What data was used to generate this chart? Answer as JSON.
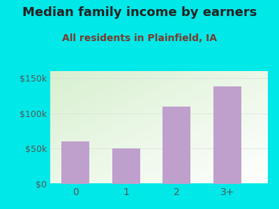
{
  "categories": [
    "0",
    "1",
    "2",
    "3+"
  ],
  "values": [
    60000,
    50000,
    110000,
    138000
  ],
  "bar_color": "#bf9fcc",
  "title": "Median family income by earners",
  "subtitle": "All residents in Plainfield, IA",
  "title_fontsize": 13,
  "subtitle_fontsize": 10,
  "title_color": "#222222",
  "subtitle_color": "#7a3b2e",
  "ylabel_ticks": [
    0,
    50000,
    100000,
    150000
  ],
  "ylabel_labels": [
    "$0",
    "$50k",
    "$100k",
    "$150k"
  ],
  "ylim": [
    0,
    160000
  ],
  "bg_outer": "#00e8e8",
  "bg_inner_top_left": "#d8f0d0",
  "bg_inner_bottom_right": "#ffffff",
  "tick_color": "#555555",
  "axis_color": "#00e8e8",
  "grid_color": "#dddddd",
  "tick_label_fontsize": 9
}
